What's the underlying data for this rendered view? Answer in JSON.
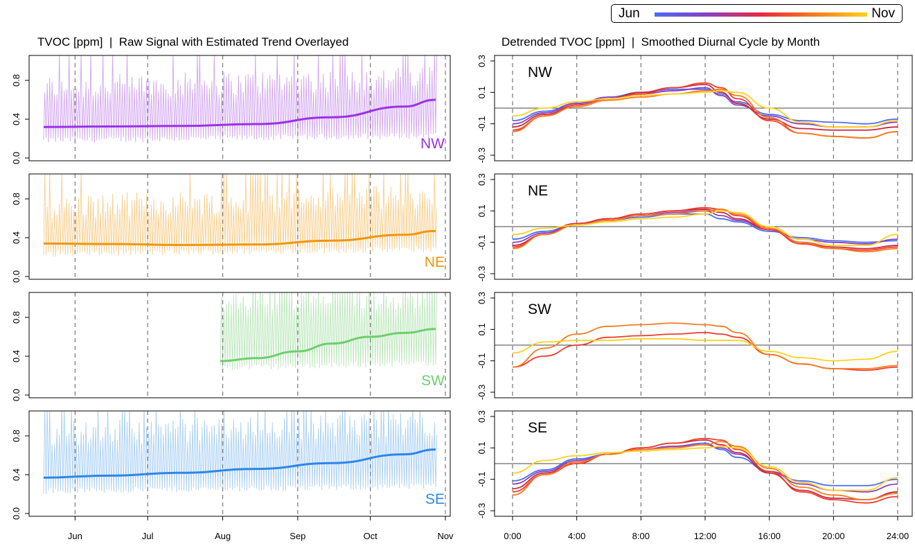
{
  "legend": {
    "start": "Jun",
    "end": "Nov",
    "gradient": [
      "#4a6cf7",
      "#8a3fc0",
      "#e8283c",
      "#f77a1e",
      "#ffd21a"
    ]
  },
  "titles": {
    "left": "TVOC [ppm]  |  Raw Signal with Estimated Trend Overlayed",
    "right": "Detrended TVOC [ppm]  |  Smoothed Diurnal Cycle by Month"
  },
  "chart_data": [
    {
      "type": "line",
      "title": "TVOC [ppm]  |  Raw Signal with Estimated Trend Overlayed",
      "xlabel": "",
      "ylabel": "",
      "x_ticks": [
        "Jun",
        "Jul",
        "Aug",
        "Sep",
        "Oct",
        "Nov"
      ],
      "x_tick_dates": [
        "2021-06-01",
        "2021-07-01",
        "2021-08-01",
        "2021-09-01",
        "2021-10-01",
        "2021-11-01"
      ],
      "ylim": [
        0,
        1.0
      ],
      "y_ticks": [
        "0.0",
        "0.4",
        "0.8"
      ],
      "grid": "vertical dashed at month starts",
      "panels": [
        {
          "label": "NW",
          "color": "#9b30e8",
          "raw_color": "#d2a6f0",
          "trend": {
            "x": [
              "2021-05-19",
              "2021-06-15",
              "2021-07-15",
              "2021-08-15",
              "2021-09-15",
              "2021-10-15",
              "2021-10-28"
            ],
            "y": [
              0.32,
              0.325,
              0.33,
              0.35,
              0.42,
              0.53,
              0.6
            ]
          },
          "raw_range": {
            "start": "2021-05-19",
            "end": "2021-10-28",
            "base_low": 0.15,
            "base_high": 0.6
          }
        },
        {
          "label": "NE",
          "color": "#f0950c",
          "raw_color": "#f7cf8e",
          "trend": {
            "x": [
              "2021-05-19",
              "2021-06-15",
              "2021-07-15",
              "2021-08-15",
              "2021-09-15",
              "2021-10-15",
              "2021-10-28"
            ],
            "y": [
              0.34,
              0.335,
              0.325,
              0.33,
              0.37,
              0.43,
              0.47
            ]
          },
          "raw_range": {
            "start": "2021-05-19",
            "end": "2021-10-28",
            "base_low": 0.2,
            "base_high": 0.6
          }
        },
        {
          "label": "SW",
          "color": "#6ccf6c",
          "raw_color": "#b9e6b9",
          "trend": {
            "x": [
              "2021-07-31",
              "2021-08-15",
              "2021-09-01",
              "2021-09-15",
              "2021-10-01",
              "2021-10-15",
              "2021-10-28"
            ],
            "y": [
              0.35,
              0.38,
              0.45,
              0.53,
              0.6,
              0.64,
              0.68
            ]
          },
          "raw_range": {
            "start": "2021-07-31",
            "end": "2021-10-28",
            "base_low": 0.25,
            "base_high": 0.8
          }
        },
        {
          "label": "SE",
          "color": "#2b86e8",
          "raw_color": "#a8cff4",
          "trend": {
            "x": [
              "2021-05-19",
              "2021-06-15",
              "2021-07-15",
              "2021-08-15",
              "2021-09-15",
              "2021-10-15",
              "2021-10-28"
            ],
            "y": [
              0.37,
              0.39,
              0.42,
              0.46,
              0.52,
              0.61,
              0.66
            ]
          },
          "raw_range": {
            "start": "2021-05-19",
            "end": "2021-10-28",
            "base_low": 0.2,
            "base_high": 0.7
          }
        }
      ]
    },
    {
      "type": "line",
      "title": "Detrended TVOC [ppm]  |  Smoothed Diurnal Cycle by Month",
      "xlabel": "",
      "ylabel": "",
      "x": [
        0,
        2,
        4,
        6,
        8,
        10,
        12,
        13,
        14,
        16,
        18,
        20,
        22,
        24
      ],
      "x_ticks": [
        "0:00",
        "4:00",
        "8:00",
        "12:00",
        "16:00",
        "20:00",
        "24:00"
      ],
      "x_tick_hours": [
        0,
        4,
        8,
        12,
        16,
        20,
        24
      ],
      "xlim": [
        0,
        24
      ],
      "ylim": [
        -0.3,
        0.3
      ],
      "y_ticks": [
        "-0.3",
        "-0.1",
        "0.1",
        "0.3"
      ],
      "zero_line": true,
      "grid": "vertical dashed every 4 hours",
      "month_colors": {
        "Jun": "#4a6cf7",
        "Jul": "#8a3fc0",
        "Aug": "#c8283c",
        "Sep": "#f03a2a",
        "Oct": "#f77a1e",
        "Nov": "#ffd21a"
      },
      "panels": [
        {
          "label": "NW",
          "series": [
            {
              "name": "Jun",
              "values": [
                -0.08,
                -0.02,
                0.03,
                0.07,
                0.1,
                0.12,
                0.12,
                0.09,
                0.04,
                -0.04,
                -0.08,
                -0.09,
                -0.1,
                -0.07
              ]
            },
            {
              "name": "Jul",
              "values": [
                -0.1,
                -0.03,
                0.03,
                0.07,
                0.09,
                0.11,
                0.13,
                0.08,
                0.02,
                -0.05,
                -0.1,
                -0.12,
                -0.12,
                -0.09
              ]
            },
            {
              "name": "Aug",
              "values": [
                -0.12,
                -0.04,
                0.02,
                0.06,
                0.1,
                0.13,
                0.15,
                0.1,
                0.03,
                -0.07,
                -0.13,
                -0.14,
                -0.14,
                -0.12
              ]
            },
            {
              "name": "Sep",
              "values": [
                -0.14,
                -0.05,
                0.02,
                0.06,
                0.09,
                0.13,
                0.16,
                0.13,
                0.06,
                -0.08,
                -0.16,
                -0.18,
                -0.19,
                -0.15
              ]
            },
            {
              "name": "Oct",
              "values": [
                -0.15,
                -0.05,
                0.01,
                0.05,
                0.07,
                0.09,
                0.11,
                0.12,
                0.08,
                -0.06,
                -0.16,
                -0.18,
                -0.19,
                -0.15
              ]
            },
            {
              "name": "Nov",
              "values": [
                -0.05,
                0.0,
                0.04,
                0.06,
                0.08,
                0.09,
                0.1,
                0.11,
                0.1,
                0.0,
                -0.09,
                -0.12,
                -0.12,
                -0.08
              ]
            }
          ]
        },
        {
          "label": "NE",
          "series": [
            {
              "name": "Jun",
              "values": [
                -0.08,
                -0.03,
                0.02,
                0.04,
                0.06,
                0.08,
                0.08,
                0.05,
                0.03,
                -0.03,
                -0.07,
                -0.09,
                -0.1,
                -0.09
              ]
            },
            {
              "name": "Jul",
              "values": [
                -0.1,
                -0.04,
                0.02,
                0.05,
                0.07,
                0.09,
                0.1,
                0.07,
                0.04,
                -0.02,
                -0.08,
                -0.1,
                -0.11,
                -0.08
              ]
            },
            {
              "name": "Aug",
              "values": [
                -0.12,
                -0.05,
                0.02,
                0.05,
                0.08,
                0.1,
                0.11,
                0.09,
                0.05,
                -0.02,
                -0.1,
                -0.13,
                -0.14,
                -0.12
              ]
            },
            {
              "name": "Sep",
              "values": [
                -0.13,
                -0.05,
                0.02,
                0.05,
                0.08,
                0.1,
                0.12,
                0.11,
                0.07,
                -0.02,
                -0.11,
                -0.14,
                -0.15,
                -0.13
              ]
            },
            {
              "name": "Oct",
              "values": [
                -0.14,
                -0.05,
                0.01,
                0.04,
                0.07,
                0.08,
                0.1,
                0.11,
                0.08,
                -0.01,
                -0.1,
                -0.14,
                -0.16,
                -0.14
              ]
            },
            {
              "name": "Nov",
              "values": [
                -0.05,
                -0.01,
                0.01,
                0.03,
                0.05,
                0.06,
                0.08,
                0.1,
                0.09,
                0.0,
                -0.08,
                -0.12,
                -0.12,
                -0.05
              ]
            }
          ]
        },
        {
          "label": "SW",
          "series": [
            {
              "name": "Sep",
              "values": [
                -0.14,
                -0.07,
                0.0,
                0.05,
                0.06,
                0.07,
                0.08,
                0.07,
                0.05,
                -0.06,
                -0.12,
                -0.15,
                -0.16,
                -0.14
              ]
            },
            {
              "name": "Oct",
              "values": [
                -0.14,
                -0.02,
                0.07,
                0.12,
                0.13,
                0.14,
                0.13,
                0.12,
                0.08,
                -0.06,
                -0.12,
                -0.15,
                -0.15,
                -0.13
              ]
            },
            {
              "name": "Nov",
              "values": [
                -0.05,
                0.02,
                0.03,
                0.03,
                0.04,
                0.04,
                0.03,
                0.03,
                0.03,
                -0.04,
                -0.08,
                -0.1,
                -0.09,
                -0.04
              ]
            }
          ]
        },
        {
          "label": "SE",
          "series": [
            {
              "name": "Jun",
              "values": [
                -0.11,
                -0.04,
                0.03,
                0.06,
                0.09,
                0.11,
                0.13,
                0.09,
                0.04,
                -0.05,
                -0.11,
                -0.14,
                -0.14,
                -0.1
              ]
            },
            {
              "name": "Jul",
              "values": [
                -0.13,
                -0.05,
                0.02,
                0.06,
                0.09,
                0.11,
                0.12,
                0.1,
                0.06,
                -0.05,
                -0.13,
                -0.17,
                -0.18,
                -0.13
              ]
            },
            {
              "name": "Aug",
              "values": [
                -0.16,
                -0.06,
                0.01,
                0.06,
                0.1,
                0.13,
                0.15,
                0.12,
                0.07,
                -0.06,
                -0.17,
                -0.22,
                -0.23,
                -0.18
              ]
            },
            {
              "name": "Sep",
              "values": [
                -0.18,
                -0.07,
                0.0,
                0.06,
                0.1,
                0.13,
                0.16,
                0.15,
                0.09,
                -0.05,
                -0.18,
                -0.23,
                -0.25,
                -0.21
              ]
            },
            {
              "name": "Oct",
              "values": [
                -0.2,
                -0.07,
                0.01,
                0.06,
                0.09,
                0.1,
                0.12,
                0.14,
                0.11,
                -0.03,
                -0.15,
                -0.2,
                -0.23,
                -0.19
              ]
            },
            {
              "name": "Nov",
              "values": [
                -0.06,
                0.02,
                0.05,
                0.07,
                0.08,
                0.09,
                0.1,
                0.11,
                0.1,
                -0.02,
                -0.12,
                -0.17,
                -0.17,
                -0.09
              ]
            }
          ]
        }
      ]
    }
  ]
}
